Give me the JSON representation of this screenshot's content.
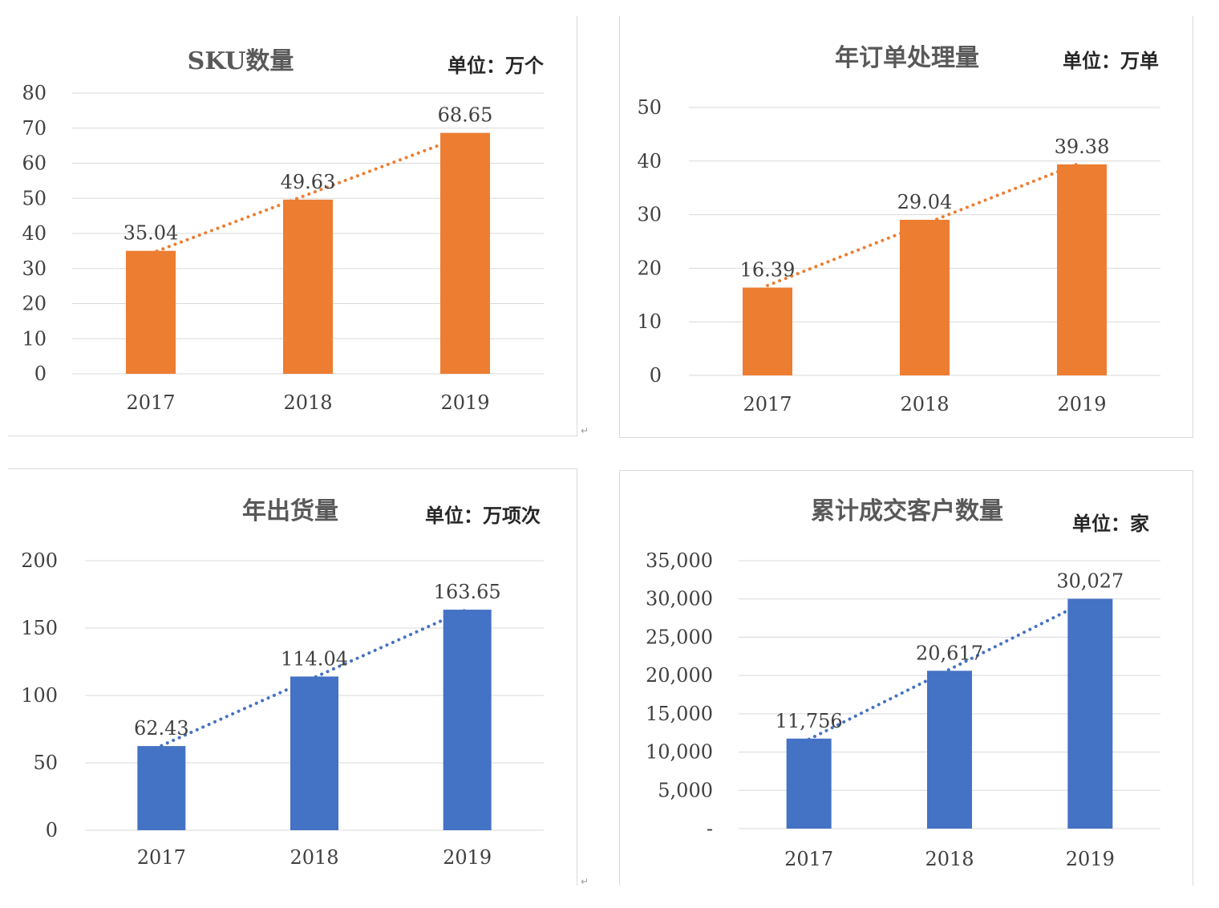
{
  "chart_data": [
    {
      "type": "bar",
      "title": "SKU数量",
      "unit": "单位：万个",
      "categories": [
        "2017",
        "2018",
        "2019"
      ],
      "values": [
        35.04,
        49.63,
        68.65
      ],
      "data_labels": [
        "35.04",
        "49.63",
        "68.65"
      ],
      "ylim": [
        0,
        80
      ],
      "yticks": [
        0,
        10,
        20,
        30,
        40,
        50,
        60,
        70,
        80
      ],
      "ytick_labels": [
        "0",
        "10",
        "20",
        "30",
        "40",
        "50",
        "60",
        "70",
        "80"
      ],
      "bar_color": "#ED7D31",
      "trendline": "linear, dotted",
      "grid": true
    },
    {
      "type": "bar",
      "title": "年订单处理量",
      "unit": "单位：万单",
      "categories": [
        "2017",
        "2018",
        "2019"
      ],
      "values": [
        16.39,
        29.04,
        39.38
      ],
      "data_labels": [
        "16.39",
        "29.04",
        "39.38"
      ],
      "ylim": [
        0,
        50
      ],
      "yticks": [
        0,
        10,
        20,
        30,
        40,
        50
      ],
      "ytick_labels": [
        "0",
        "10",
        "20",
        "30",
        "40",
        "50"
      ],
      "bar_color": "#ED7D31",
      "trendline": "linear, dotted",
      "grid": true
    },
    {
      "type": "bar",
      "title": "年出货量",
      "unit": "单位：万项次",
      "categories": [
        "2017",
        "2018",
        "2019"
      ],
      "values": [
        62.43,
        114.04,
        163.65
      ],
      "data_labels": [
        "62.43",
        "114.04",
        "163.65"
      ],
      "ylim": [
        0,
        200
      ],
      "yticks": [
        0,
        50,
        100,
        150,
        200
      ],
      "ytick_labels": [
        "0",
        "50",
        "100",
        "150",
        "200"
      ],
      "bar_color": "#4472C4",
      "trendline": "linear, dotted",
      "grid": true
    },
    {
      "type": "bar",
      "title": "累计成交客户数量",
      "unit": "单位：家",
      "categories": [
        "2017",
        "2018",
        "2019"
      ],
      "values": [
        11756,
        20617,
        30027
      ],
      "data_labels": [
        "11,756",
        "20,617",
        "30,027"
      ],
      "ylim": [
        0,
        35000
      ],
      "yticks": [
        0,
        5000,
        10000,
        15000,
        20000,
        25000,
        30000,
        35000
      ],
      "ytick_labels": [
        "-",
        "5,000",
        "10,000",
        "15,000",
        "20,000",
        "25,000",
        "30,000",
        "35,000"
      ],
      "bar_color": "#4472C4",
      "trendline": "linear, dotted",
      "grid": true
    }
  ]
}
